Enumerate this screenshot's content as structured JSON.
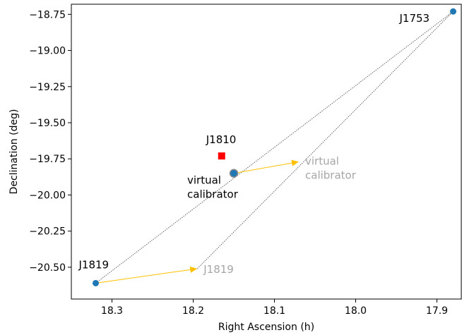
{
  "chart_data": {
    "type": "scatter",
    "xlabel": "Right Ascension (h)",
    "ylabel": "Declination (deg)",
    "xlim": [
      18.35,
      17.87
    ],
    "ylim": [
      -20.72,
      -18.68
    ],
    "x_ticks": [
      18.3,
      18.2,
      18.1,
      18.0,
      17.9
    ],
    "x_tick_labels": [
      "18.3",
      "18.2",
      "18.1",
      "18.0",
      "17.9"
    ],
    "y_ticks": [
      -18.75,
      -19.0,
      -19.25,
      -19.5,
      -19.75,
      -20.0,
      -20.25,
      -20.5
    ],
    "y_tick_labels": [
      "−18.75",
      "−19.00",
      "−19.25",
      "−19.50",
      "−19.75",
      "−20.00",
      "−20.25",
      "−20.50"
    ],
    "grid": false,
    "points": [
      {
        "label": "J1753",
        "x": 17.88,
        "y": -18.73,
        "marker": "circle",
        "color": "#1f77b4"
      },
      {
        "label": "J1819",
        "x": 18.32,
        "y": -20.61,
        "marker": "circle",
        "color": "#1f77b4"
      },
      {
        "label": "virtual\ncalibrator",
        "x": 18.15,
        "y": -19.85,
        "marker": "circle-large",
        "color": "#1f77b4"
      },
      {
        "label": "J1810",
        "x": 18.165,
        "y": -19.73,
        "marker": "square",
        "color": "#ff0000"
      }
    ],
    "ghost_points": [
      {
        "label": "J1819",
        "x": 18.195,
        "y": -20.51
      },
      {
        "label": "virtual\ncalibrator",
        "x": 18.07,
        "y": -19.77
      }
    ],
    "arrows": [
      {
        "from": [
          18.32,
          -20.61
        ],
        "to": [
          18.195,
          -20.51
        ],
        "color": "#ffc000"
      },
      {
        "from": [
          18.15,
          -19.85
        ],
        "to": [
          18.07,
          -19.77
        ],
        "color": "#ffc000"
      }
    ],
    "dashed_lines": [
      {
        "from": [
          18.32,
          -20.61
        ],
        "to": [
          17.88,
          -18.73
        ]
      },
      {
        "from": [
          18.195,
          -20.51
        ],
        "to": [
          17.88,
          -18.73
        ]
      }
    ],
    "colors": {
      "point": "#1f77b4",
      "target": "#ff0000",
      "arrow": "#ffc000",
      "ghost_text": "#a6a6a6",
      "line": "#404040"
    }
  }
}
